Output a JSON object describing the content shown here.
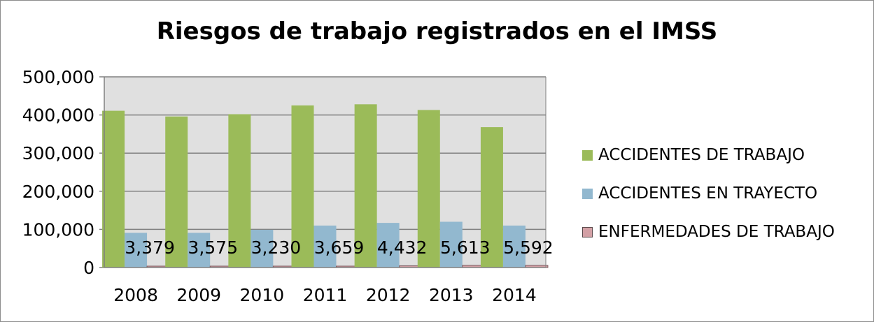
{
  "chart_data": {
    "type": "bar",
    "title": "Riesgos de trabajo registrados en el IMSS",
    "categories": [
      "2008",
      "2009",
      "2010",
      "2011",
      "2012",
      "2013",
      "2014"
    ],
    "series": [
      {
        "name": "ACCIDENTES DE TRABAJO",
        "color": "#9bbb59",
        "values": [
          411000,
          396000,
          402000,
          425000,
          428000,
          413000,
          368000
        ]
      },
      {
        "name": "ACCIDENTES EN TRAYECTO",
        "color": "#92b8cf",
        "values": [
          91000,
          91000,
          99000,
          110000,
          117000,
          120000,
          110000
        ]
      },
      {
        "name": "ENFERMEDADES DE TRABAJO",
        "color": "#d3a0a5",
        "values": [
          3379,
          3575,
          3230,
          3659,
          4432,
          5613,
          5592
        ]
      }
    ],
    "data_labels": [
      "3,379",
      "3,575",
      "3,230",
      "3,659",
      "4,432",
      "5,613",
      "5,592"
    ],
    "y_ticks": [
      "0",
      "100,000",
      "200,000",
      "300,000",
      "400,000",
      "500,000"
    ],
    "ylim": [
      0,
      500000
    ],
    "grid": true,
    "legend_position": "right",
    "plot_background": "#e0e0e0"
  }
}
